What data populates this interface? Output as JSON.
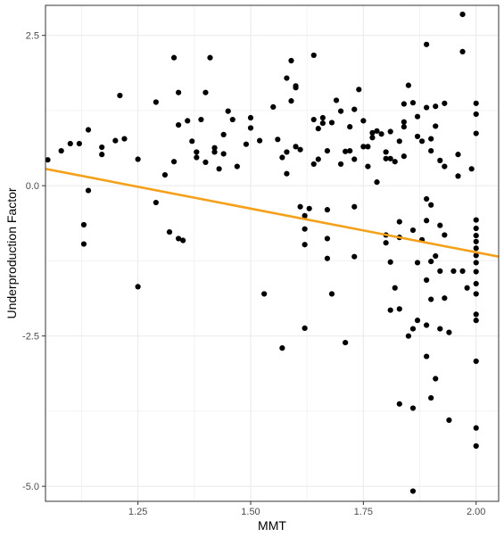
{
  "chart_data": {
    "type": "scatter",
    "title": "",
    "xlabel": "MMT",
    "ylabel": "Underproduction Factor",
    "xlim": [
      1.045,
      2.05
    ],
    "ylim": [
      -5.25,
      3.0
    ],
    "x_ticks": [
      1.25,
      1.5,
      1.75,
      2.0
    ],
    "x_tick_labels": [
      "1.25",
      "1.50",
      "1.75",
      "2.00"
    ],
    "y_ticks": [
      2.5,
      0.0,
      -2.5,
      -5.0
    ],
    "y_tick_labels": [
      "2.5",
      "0.0",
      "-2.5",
      "-5.0"
    ],
    "grid": true,
    "colors": {
      "points": "#000000",
      "trend": "#f5a01a",
      "grid": "#ebebeb",
      "border": "#333333"
    },
    "trend_line": {
      "x": [
        1.045,
        2.05
      ],
      "y": [
        0.28,
        -1.18
      ]
    },
    "points": [
      [
        1.05,
        0.43
      ],
      [
        1.08,
        0.58
      ],
      [
        1.1,
        0.7
      ],
      [
        1.12,
        0.7
      ],
      [
        1.14,
        0.93
      ],
      [
        1.17,
        0.52
      ],
      [
        1.17,
        0.64
      ],
      [
        1.2,
        0.75
      ],
      [
        1.21,
        1.5
      ],
      [
        1.22,
        0.78
      ],
      [
        1.13,
        -0.97
      ],
      [
        1.13,
        -0.65
      ],
      [
        1.14,
        -0.08
      ],
      [
        1.25,
        0.44
      ],
      [
        1.25,
        -1.68
      ],
      [
        1.29,
        1.39
      ],
      [
        1.29,
        -0.28
      ],
      [
        1.31,
        0.18
      ],
      [
        1.32,
        -0.77
      ],
      [
        1.33,
        0.4
      ],
      [
        1.33,
        2.13
      ],
      [
        1.34,
        1.55
      ],
      [
        1.34,
        1.01
      ],
      [
        1.34,
        -0.88
      ],
      [
        1.35,
        -0.91
      ],
      [
        1.36,
        1.08
      ],
      [
        1.37,
        0.74
      ],
      [
        1.38,
        0.56
      ],
      [
        1.38,
        0.47
      ],
      [
        1.39,
        1.1
      ],
      [
        1.4,
        1.55
      ],
      [
        1.4,
        0.39
      ],
      [
        1.41,
        2.13
      ],
      [
        1.42,
        0.63
      ],
      [
        1.42,
        0.56
      ],
      [
        1.43,
        0.28
      ],
      [
        1.44,
        0.53
      ],
      [
        1.44,
        0.85
      ],
      [
        1.45,
        1.24
      ],
      [
        1.46,
        1.1
      ],
      [
        1.47,
        0.32
      ],
      [
        1.49,
        0.69
      ],
      [
        1.5,
        1.13
      ],
      [
        1.5,
        0.96
      ],
      [
        1.52,
        0.75
      ],
      [
        1.53,
        -1.8
      ],
      [
        1.55,
        1.31
      ],
      [
        1.56,
        0.77
      ],
      [
        1.57,
        0.47
      ],
      [
        1.57,
        -2.7
      ],
      [
        1.58,
        0.56
      ],
      [
        1.58,
        0.2
      ],
      [
        1.58,
        1.79
      ],
      [
        1.59,
        2.08
      ],
      [
        1.59,
        1.41
      ],
      [
        1.6,
        1.63
      ],
      [
        1.6,
        1.66
      ],
      [
        1.6,
        0.65
      ],
      [
        1.61,
        0.6
      ],
      [
        1.61,
        -0.35
      ],
      [
        1.62,
        -2.37
      ],
      [
        1.62,
        -0.5
      ],
      [
        1.62,
        -0.72
      ],
      [
        1.62,
        -0.98
      ],
      [
        1.63,
        -0.38
      ],
      [
        1.64,
        2.17
      ],
      [
        1.64,
        1.1
      ],
      [
        1.64,
        0.36
      ],
      [
        1.65,
        0.95
      ],
      [
        1.65,
        0.44
      ],
      [
        1.66,
        1.13
      ],
      [
        1.66,
        1.04
      ],
      [
        1.67,
        0.58
      ],
      [
        1.67,
        -0.4
      ],
      [
        1.67,
        -0.88
      ],
      [
        1.67,
        -1.21
      ],
      [
        1.68,
        1.05
      ],
      [
        1.68,
        -1.8
      ],
      [
        1.69,
        1.42
      ],
      [
        1.7,
        1.24
      ],
      [
        1.7,
        0.36
      ],
      [
        1.71,
        0.57
      ],
      [
        1.71,
        -2.61
      ],
      [
        1.72,
        0.98
      ],
      [
        1.72,
        0.58
      ],
      [
        1.73,
        1.27
      ],
      [
        1.73,
        0.44
      ],
      [
        1.73,
        -0.35
      ],
      [
        1.73,
        -1.18
      ],
      [
        1.74,
        1.6
      ],
      [
        1.75,
        1.08
      ],
      [
        1.75,
        0.65
      ],
      [
        1.76,
        0.65
      ],
      [
        1.76,
        0.32
      ],
      [
        1.77,
        0.88
      ],
      [
        1.77,
        0.8
      ],
      [
        1.78,
        0.06
      ],
      [
        1.78,
        0.91
      ],
      [
        1.79,
        0.86
      ],
      [
        1.8,
        0.56
      ],
      [
        1.8,
        0.45
      ],
      [
        1.8,
        -0.82
      ],
      [
        1.8,
        -0.95
      ],
      [
        1.81,
        0.9
      ],
      [
        1.81,
        0.45
      ],
      [
        1.81,
        -1.27
      ],
      [
        1.81,
        -2.07
      ],
      [
        1.82,
        0.4
      ],
      [
        1.82,
        -1.7
      ],
      [
        1.83,
        0.74
      ],
      [
        1.83,
        -0.6
      ],
      [
        1.83,
        -0.86
      ],
      [
        1.83,
        -2.05
      ],
      [
        1.83,
        -3.63
      ],
      [
        1.84,
        1.06
      ],
      [
        1.84,
        1.36
      ],
      [
        1.84,
        0.49
      ],
      [
        1.84,
        0.98
      ],
      [
        1.85,
        1.67
      ],
      [
        1.85,
        -2.5
      ],
      [
        1.86,
        1.38
      ],
      [
        1.86,
        -0.74
      ],
      [
        1.86,
        -2.38
      ],
      [
        1.86,
        -3.7
      ],
      [
        1.86,
        -5.08
      ],
      [
        1.87,
        1.15
      ],
      [
        1.87,
        0.82
      ],
      [
        1.87,
        -1.28
      ],
      [
        1.87,
        -2.24
      ],
      [
        1.88,
        0.74
      ],
      [
        1.88,
        -0.9
      ],
      [
        1.89,
        2.35
      ],
      [
        1.89,
        1.3
      ],
      [
        1.89,
        -0.22
      ],
      [
        1.89,
        -0.58
      ],
      [
        1.89,
        -1.57
      ],
      [
        1.89,
        -2.32
      ],
      [
        1.89,
        -2.84
      ],
      [
        1.9,
        0.78
      ],
      [
        1.9,
        0.58
      ],
      [
        1.9,
        -0.32
      ],
      [
        1.9,
        -1.26
      ],
      [
        1.9,
        -1.89
      ],
      [
        1.9,
        -3.53
      ],
      [
        1.91,
        1.32
      ],
      [
        1.91,
        0.99
      ],
      [
        1.91,
        -1.17
      ],
      [
        1.91,
        -3.21
      ],
      [
        1.92,
        0.42
      ],
      [
        1.92,
        -0.66
      ],
      [
        1.92,
        -1.42
      ],
      [
        1.92,
        -2.38
      ],
      [
        1.93,
        1.37
      ],
      [
        1.93,
        0.32
      ],
      [
        1.93,
        -0.82
      ],
      [
        1.93,
        -1.87
      ],
      [
        1.94,
        -2.44
      ],
      [
        1.94,
        -3.9
      ],
      [
        1.95,
        -1.42
      ],
      [
        1.96,
        0.52
      ],
      [
        1.96,
        0.16
      ],
      [
        1.97,
        2.85
      ],
      [
        1.97,
        2.23
      ],
      [
        1.97,
        -1.42
      ],
      [
        1.98,
        -1.7
      ],
      [
        1.99,
        0.28
      ],
      [
        2.0,
        1.37
      ],
      [
        2.0,
        1.19
      ],
      [
        2.0,
        0.87
      ],
      [
        2.0,
        -0.57
      ],
      [
        2.0,
        -0.71
      ],
      [
        2.0,
        -0.83
      ],
      [
        2.0,
        -0.93
      ],
      [
        2.0,
        -1.04
      ],
      [
        2.0,
        -1.16
      ],
      [
        2.0,
        -1.28
      ],
      [
        2.0,
        -1.43
      ],
      [
        2.0,
        -1.63
      ],
      [
        2.0,
        -1.8
      ],
      [
        2.0,
        -2.14
      ],
      [
        2.0,
        -2.24
      ],
      [
        2.0,
        -2.92
      ],
      [
        2.0,
        -4.03
      ],
      [
        2.0,
        -4.33
      ]
    ]
  }
}
